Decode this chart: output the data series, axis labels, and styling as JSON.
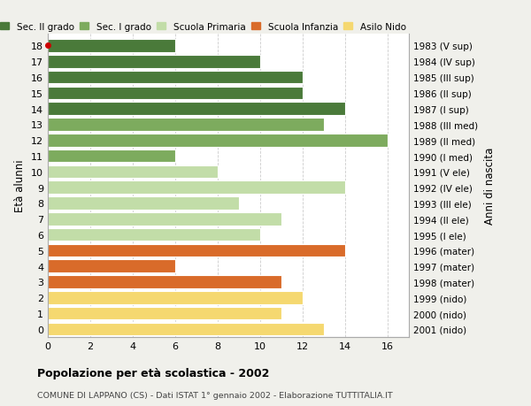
{
  "ages": [
    18,
    17,
    16,
    15,
    14,
    13,
    12,
    11,
    10,
    9,
    8,
    7,
    6,
    5,
    4,
    3,
    2,
    1,
    0
  ],
  "values": [
    6,
    10,
    12,
    12,
    14,
    13,
    16,
    6,
    8,
    14,
    9,
    11,
    10,
    14,
    6,
    11,
    12,
    11,
    13
  ],
  "right_labels": [
    "1983 (V sup)",
    "1984 (IV sup)",
    "1985 (III sup)",
    "1986 (II sup)",
    "1987 (I sup)",
    "1988 (III med)",
    "1989 (II med)",
    "1990 (I med)",
    "1991 (V ele)",
    "1992 (IV ele)",
    "1993 (III ele)",
    "1994 (II ele)",
    "1995 (I ele)",
    "1996 (mater)",
    "1997 (mater)",
    "1998 (mater)",
    "1999 (nido)",
    "2000 (nido)",
    "2001 (nido)"
  ],
  "colors": [
    "#4a7a3a",
    "#4a7a3a",
    "#4a7a3a",
    "#4a7a3a",
    "#4a7a3a",
    "#7dab5e",
    "#7dab5e",
    "#7dab5e",
    "#c2dda8",
    "#c2dda8",
    "#c2dda8",
    "#c2dda8",
    "#c2dda8",
    "#d96b2a",
    "#d96b2a",
    "#d96b2a",
    "#f5d870",
    "#f5d870",
    "#f5d870"
  ],
  "legend_labels": [
    "Sec. II grado",
    "Sec. I grado",
    "Scuola Primaria",
    "Scuola Infanzia",
    "Asilo Nido"
  ],
  "legend_colors": [
    "#4a7a3a",
    "#7dab5e",
    "#c2dda8",
    "#d96b2a",
    "#f5d870"
  ],
  "title": "Popolazione per età scolastica - 2002",
  "subtitle": "COMUNE DI LAPPANO (CS) - Dati ISTAT 1° gennaio 2002 - Elaborazione TUTTITALIA.IT",
  "ylabel": "Età alunni",
  "right_ylabel": "Anni di nascita",
  "xlim": [
    0,
    17
  ],
  "xticks": [
    0,
    2,
    4,
    6,
    8,
    10,
    12,
    14,
    16
  ],
  "background_color": "#f0f0eb",
  "bar_background": "#ffffff",
  "grid_color": "#cccccc",
  "dot_color": "#cc0000"
}
